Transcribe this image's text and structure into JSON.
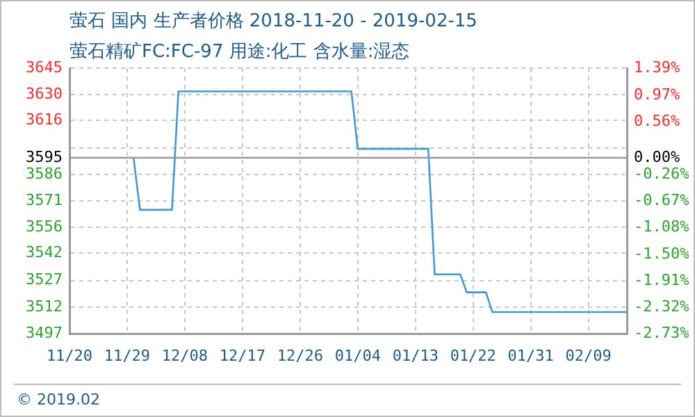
{
  "chart_data": {
    "type": "line",
    "title": "萤石 国内 生产者价格 2018-11-20 - 2019-02-15",
    "subtitle": "萤石精矿FC:FC-97 用途:化工 含水量:湿态",
    "x": [
      "2018-11-30",
      "2018-12-01",
      "2018-12-06",
      "2018-12-07",
      "2019-01-03",
      "2019-01-04",
      "2019-01-15",
      "2019-01-16",
      "2019-01-20",
      "2019-01-21",
      "2019-01-24",
      "2019-01-25",
      "2019-02-15"
    ],
    "series": [
      {
        "color": "#3d9ad6",
        "values": [
          3595,
          3566,
          3566,
          3632,
          3632,
          3600,
          3600,
          3530,
          3530,
          3520,
          3520,
          3509,
          3509
        ]
      }
    ],
    "xlim": [
      "2018-11-20",
      "2019-02-15"
    ],
    "xticks": [
      {
        "value": "2018-11-20",
        "label": "11/20"
      },
      {
        "value": "2018-11-29",
        "label": "11/29"
      },
      {
        "value": "2018-12-08",
        "label": "12/08"
      },
      {
        "value": "2018-12-17",
        "label": "12/17"
      },
      {
        "value": "2018-12-26",
        "label": "12/26"
      },
      {
        "value": "2019-01-04",
        "label": "01/04"
      },
      {
        "value": "2019-01-13",
        "label": "01/13"
      },
      {
        "value": "2019-01-22",
        "label": "01/22"
      },
      {
        "value": "2019-01-31",
        "label": "01/31"
      },
      {
        "value": "2019-02-09",
        "label": "02/09"
      }
    ],
    "ylim": [
      3497,
      3645
    ],
    "yticks": [
      3645,
      {
        "value": 3630.2,
        "label": "3630"
      },
      3616,
      {
        "value": 3600.6,
        "label": null
      },
      3595,
      {
        "value": 3585.8,
        "label": "3586"
      },
      3571,
      {
        "value": 3556.2,
        "label": "3556"
      },
      3542,
      {
        "value": 3526.6,
        "label": "3527"
      },
      {
        "value": 3511.8,
        "label": "3512"
      },
      3497
    ],
    "y2lim": [
      -2.73,
      1.39
    ],
    "y2ticks": [
      {
        "value": 1.39,
        "label": "1.39%"
      },
      {
        "value": 0.97,
        "label": "0.97%"
      },
      {
        "value": 0.56,
        "label": "0.56%"
      },
      {
        "value": 0,
        "label": "0.00%"
      },
      {
        "value": -0.26,
        "label": "-0.26%"
      },
      {
        "value": -0.67,
        "label": "-0.67%"
      },
      {
        "value": -1.08,
        "label": "-1.08%"
      },
      {
        "value": -1.5,
        "label": "-1.50%"
      },
      {
        "value": -1.91,
        "label": "-1.91%"
      },
      {
        "value": -2.32,
        "label": "-2.32%"
      },
      {
        "value": -2.73,
        "label": "-2.73%"
      }
    ],
    "ref_lines": [
      {
        "axis": "y",
        "value": 3595,
        "color": "#999999"
      }
    ],
    "grid": true,
    "legend": false,
    "marker": "none",
    "line_style": "solid",
    "annotations": [
      "© 2019.02"
    ]
  }
}
